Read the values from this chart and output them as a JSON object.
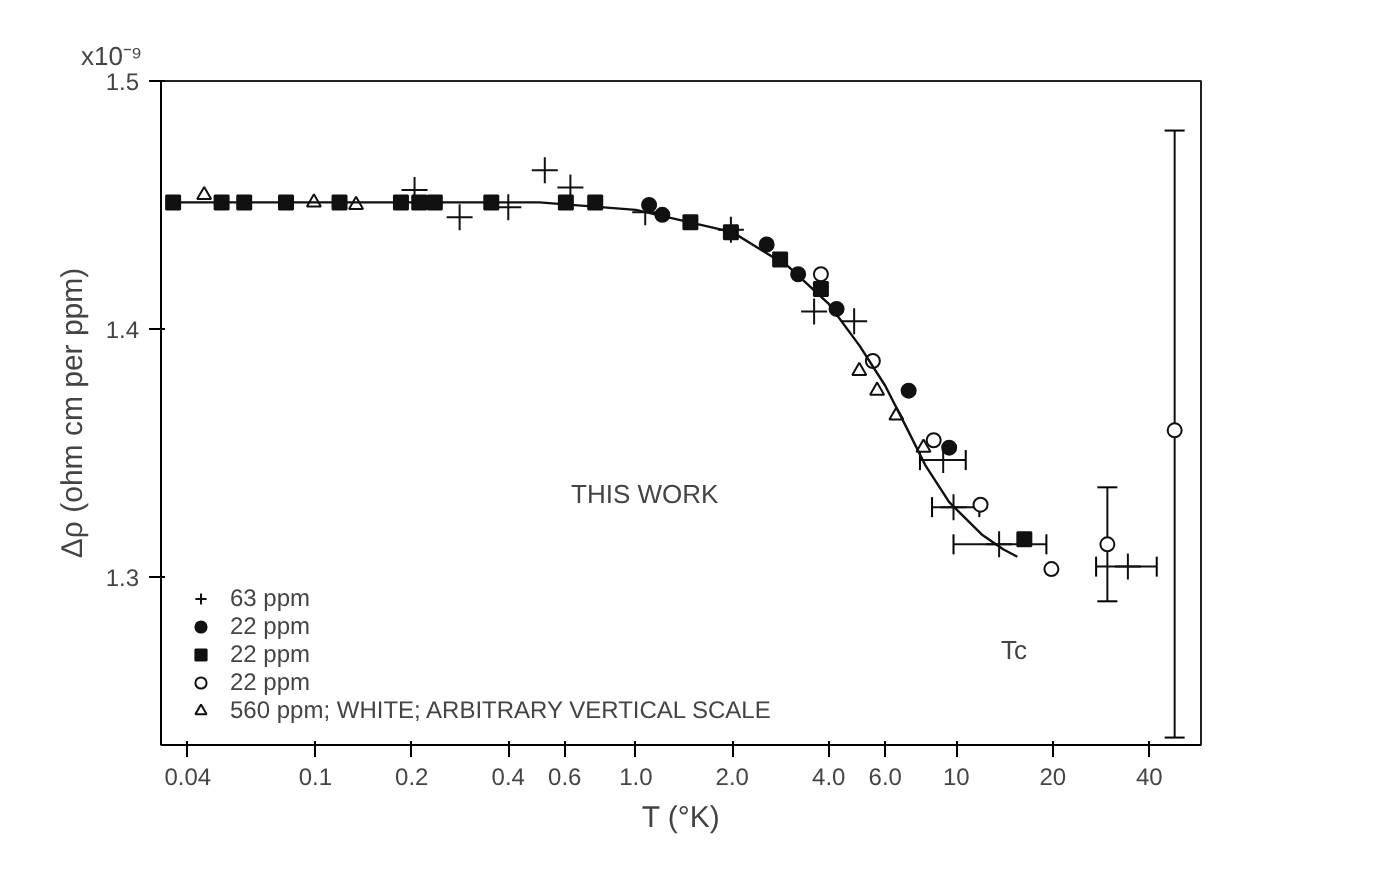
{
  "chart_data": {
    "type": "scatter",
    "xlabel": "T (°K)",
    "ylabel": "Δρ (ohm cm per ppm)",
    "log": "x",
    "xlim": [
      0.033,
      58
    ],
    "ylim": [
      1.232,
      1.5
    ],
    "xticks": [
      0.04,
      0.1,
      0.2,
      0.4,
      0.6,
      {
        "value": 1,
        "label": "1.0"
      },
      {
        "value": 2,
        "label": "2.0"
      },
      {
        "value": 4,
        "label": "4.0"
      },
      {
        "value": 6,
        "label": "6.0"
      },
      10,
      20,
      40
    ],
    "yticks": [
      1.3,
      1.4,
      1.5
    ],
    "grid": false,
    "legend": "bottom left",
    "annotations": [
      "x10⁻⁹",
      "THIS WORK",
      "Tc"
    ],
    "series": [
      {
        "name": "63 ppm",
        "marker": "cross",
        "color": "#111111",
        "x": [
          0.204,
          0.282,
          0.4,
          0.52,
          0.625,
          1.07,
          1.98,
          3.6,
          4.8,
          9.1,
          9.8,
          13.6,
          34.3
        ],
        "values": [
          1.456,
          1.445,
          1.449,
          1.464,
          1.457,
          1.447,
          1.44,
          1.407,
          1.403,
          1.347,
          1.328,
          1.313,
          1.304
        ],
        "xerrors": [
          null,
          null,
          null,
          null,
          null,
          null,
          null,
          null,
          null,
          [
            7.7,
            10.7
          ],
          [
            8.4,
            11.8
          ],
          [
            9.8,
            19.1
          ],
          [
            27.3,
            42.2
          ]
        ]
      },
      {
        "name": "22 ppm",
        "marker": "circle",
        "color": "#111111",
        "x": [
          1.1,
          1.21,
          2.56,
          3.21,
          4.23,
          7.1,
          9.5
        ],
        "values": [
          1.45,
          1.446,
          1.434,
          1.422,
          1.408,
          1.375,
          1.352
        ]
      },
      {
        "name": "22 ppm",
        "marker": "square",
        "color": "#111111",
        "x": [
          0.036,
          0.051,
          0.06,
          0.081,
          0.119,
          0.185,
          0.211,
          0.236,
          0.354,
          0.605,
          0.747,
          1.48,
          1.98,
          2.82,
          3.78,
          16.3
        ],
        "values": [
          1.451,
          1.451,
          1.451,
          1.451,
          1.451,
          1.451,
          1.451,
          1.451,
          1.451,
          1.451,
          1.451,
          1.443,
          1.439,
          1.428,
          1.416,
          1.315
        ]
      },
      {
        "name": "22 ppm",
        "marker": "circle",
        "color": "#ffffff",
        "x": [
          3.78,
          5.49,
          8.5,
          11.9,
          19.8,
          29.6,
          48
        ],
        "values": [
          1.422,
          1.387,
          1.355,
          1.329,
          1.303,
          1.313,
          1.359
        ],
        "errors": [
          null,
          null,
          null,
          null,
          null,
          [
            1.29,
            1.336
          ],
          [
            1.235,
            1.48
          ]
        ]
      },
      {
        "name": "560 ppm; WHITE; ARBITRARY VERTICAL SCALE",
        "marker": "triangle",
        "color": "#ffffff",
        "x": [
          0.045,
          0.099,
          0.134,
          4.98,
          5.66,
          6.5,
          7.9
        ],
        "values": [
          1.454,
          1.451,
          1.45,
          1.383,
          1.375,
          1.365,
          1.352
        ]
      },
      {
        "type": "line",
        "color": "#111111",
        "x": [
          0.035,
          0.5,
          1.0,
          2.0,
          3.0,
          4.0,
          5.0,
          6.0,
          7.0,
          8.0,
          9.5,
          12,
          14,
          15.5
        ],
        "values": [
          1.451,
          1.451,
          1.448,
          1.439,
          1.425,
          1.41,
          1.393,
          1.377,
          1.36,
          1.345,
          1.33,
          1.317,
          1.311,
          1.308
        ]
      }
    ]
  }
}
